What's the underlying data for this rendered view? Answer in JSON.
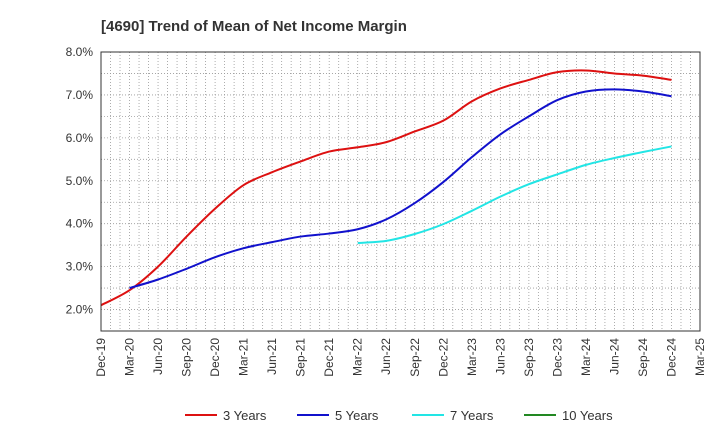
{
  "chart_data": {
    "type": "line",
    "title": "[4690]  Trend of Mean of Net Income Margin",
    "xlabel": "",
    "ylabel": "",
    "x_ticks": [
      "Dec-19",
      "Mar-20",
      "Jun-20",
      "Sep-20",
      "Dec-20",
      "Mar-21",
      "Jun-21",
      "Sep-21",
      "Dec-21",
      "Mar-22",
      "Jun-22",
      "Sep-22",
      "Dec-22",
      "Mar-23",
      "Jun-23",
      "Sep-23",
      "Dec-23",
      "Mar-24",
      "Jun-24",
      "Sep-24",
      "Dec-24",
      "Mar-25"
    ],
    "y_ticks": [
      "2.0%",
      "3.0%",
      "4.0%",
      "5.0%",
      "6.0%",
      "7.0%",
      "8.0%"
    ],
    "ylim": [
      1.5,
      8.0
    ],
    "y_unit": "%",
    "grid": true,
    "legend_position": "bottom",
    "series": [
      {
        "name": "3 Years",
        "color": "#dd1111",
        "x": [
          "Dec-19",
          "Mar-20",
          "Jun-20",
          "Sep-20",
          "Dec-20",
          "Mar-21",
          "Jun-21",
          "Sep-21",
          "Dec-21",
          "Mar-22",
          "Jun-22",
          "Sep-22",
          "Dec-22",
          "Mar-23",
          "Jun-23",
          "Sep-23",
          "Dec-23",
          "Mar-24",
          "Jun-24",
          "Sep-24",
          "Dec-24"
        ],
        "values": [
          2.1,
          2.45,
          3.0,
          3.7,
          4.35,
          4.9,
          5.2,
          5.45,
          5.68,
          5.78,
          5.9,
          6.15,
          6.4,
          6.85,
          7.15,
          7.35,
          7.53,
          7.57,
          7.5,
          7.45,
          7.35
        ]
      },
      {
        "name": "5 Years",
        "color": "#1111cc",
        "x": [
          "Mar-20",
          "Jun-20",
          "Sep-20",
          "Dec-20",
          "Mar-21",
          "Jun-21",
          "Sep-21",
          "Dec-21",
          "Mar-22",
          "Jun-22",
          "Sep-22",
          "Dec-22",
          "Mar-23",
          "Jun-23",
          "Sep-23",
          "Dec-23",
          "Mar-24",
          "Jun-24",
          "Sep-24",
          "Dec-24"
        ],
        "values": [
          2.5,
          2.7,
          2.95,
          3.22,
          3.43,
          3.57,
          3.7,
          3.77,
          3.87,
          4.1,
          4.48,
          4.97,
          5.55,
          6.08,
          6.5,
          6.88,
          7.08,
          7.13,
          7.08,
          6.97
        ]
      },
      {
        "name": "7 Years",
        "color": "#22e5e5",
        "x": [
          "Mar-22",
          "Jun-22",
          "Sep-22",
          "Dec-22",
          "Mar-23",
          "Jun-23",
          "Sep-23",
          "Dec-23",
          "Mar-24",
          "Jun-24",
          "Sep-24",
          "Dec-24"
        ],
        "values": [
          3.55,
          3.6,
          3.76,
          3.99,
          4.3,
          4.63,
          4.92,
          5.15,
          5.37,
          5.53,
          5.67,
          5.8
        ]
      },
      {
        "name": "10 Years",
        "color": "#228822",
        "x": [],
        "values": []
      }
    ]
  }
}
